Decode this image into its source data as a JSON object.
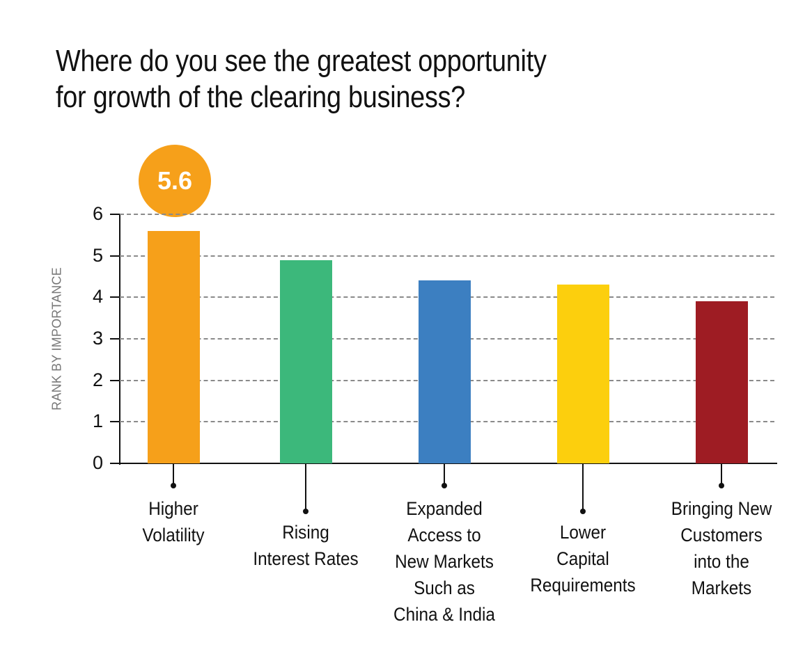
{
  "title": {
    "line1": "Where do you see the greatest opportunity",
    "line2": "for growth of the clearing business?"
  },
  "callout": {
    "label": "5.6",
    "color": "#f6a01a"
  },
  "y_axis": {
    "label": "RANK BY IMPORTANCE",
    "ticks": [
      "0",
      "1",
      "2",
      "3",
      "4",
      "5",
      "6"
    ]
  },
  "categories": [
    {
      "label_lines": [
        "Higher",
        "Volatility"
      ],
      "value": 5.6,
      "color": "#f6a01a"
    },
    {
      "label_lines": [
        "Rising",
        "Interest Rates"
      ],
      "value": 4.9,
      "color": "#3cb87b"
    },
    {
      "label_lines": [
        "Expanded",
        "Access to",
        "New Markets",
        "Such as",
        "China & India"
      ],
      "value": 4.4,
      "color": "#3c7fc1"
    },
    {
      "label_lines": [
        "Lower",
        "Capital",
        "Requirements"
      ],
      "value": 4.3,
      "color": "#fccf0d"
    },
    {
      "label_lines": [
        "Bringing New",
        "Customers",
        "into the",
        "Markets"
      ],
      "value": 3.9,
      "color": "#9e1c23"
    }
  ],
  "chart_data": {
    "type": "bar",
    "title": "Where do you see the greatest opportunity for growth of the clearing business?",
    "categories": [
      "Higher Volatility",
      "Rising Interest Rates",
      "Expanded Access to New Markets Such as China & India",
      "Lower Capital Requirements",
      "Bringing New Customers into the Markets"
    ],
    "values": [
      5.6,
      4.9,
      4.4,
      4.3,
      3.9
    ],
    "colors": [
      "#f6a01a",
      "#3cb87b",
      "#3c7fc1",
      "#fccf0d",
      "#9e1c23"
    ],
    "xlabel": "",
    "ylabel": "RANK BY IMPORTANCE",
    "ylim": [
      0,
      6
    ],
    "yticks": [
      0,
      1,
      2,
      3,
      4,
      5,
      6
    ],
    "grid": true,
    "annotations": [
      {
        "category": "Higher Volatility",
        "text": "5.6"
      }
    ],
    "legend": null
  }
}
